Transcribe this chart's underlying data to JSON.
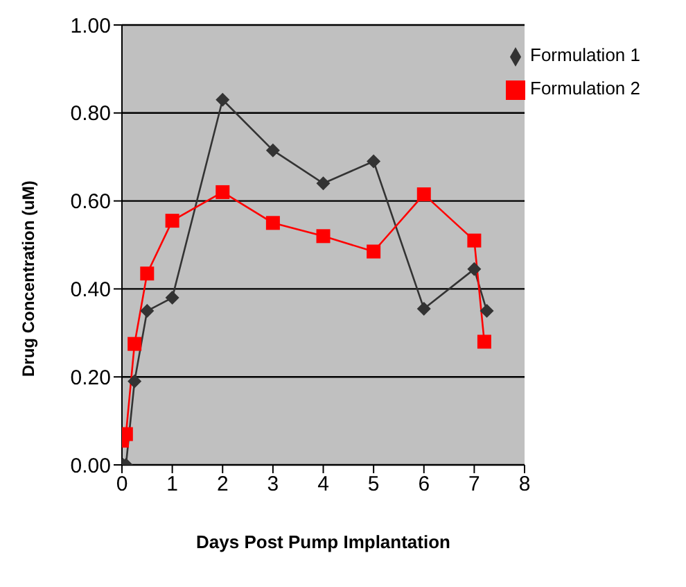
{
  "chart_data": {
    "type": "line",
    "xlabel": "Days Post Pump Implantation",
    "ylabel": "Drug Concentration (uM)",
    "series": [
      {
        "name": "Formulation 1",
        "color": "#333333",
        "marker": "diamond",
        "x": [
          0.02,
          0.08,
          0.25,
          0.5,
          1,
          2,
          3,
          4,
          5,
          6,
          7,
          7.25
        ],
        "values": [
          0,
          0,
          0.19,
          0.35,
          0.38,
          0.83,
          0.715,
          0.64,
          0.69,
          0.355,
          0.445,
          0.35
        ]
      },
      {
        "name": "Formulation 2",
        "color": "#ff0000",
        "marker": "square",
        "x": [
          0,
          0.08,
          0.25,
          0.5,
          1,
          2,
          3,
          4,
          5,
          6,
          7,
          7.2
        ],
        "values": [
          0.055,
          0.07,
          0.275,
          0.435,
          0.555,
          0.62,
          0.55,
          0.52,
          0.485,
          0.615,
          0.51,
          0.28
        ]
      }
    ],
    "xlim": [
      0,
      8
    ],
    "xticks": [
      0,
      1,
      2,
      3,
      4,
      5,
      6,
      7,
      8
    ],
    "ylim": [
      0,
      1
    ],
    "yticks": [
      {
        "value": 0,
        "label": "0.00"
      },
      {
        "value": 0.2,
        "label": "0.20"
      },
      {
        "value": 0.4,
        "label": "0.40"
      },
      {
        "value": 0.6,
        "label": "0.60"
      },
      {
        "value": 0.8,
        "label": "0.80"
      },
      {
        "value": 1,
        "label": "1.00"
      }
    ],
    "grid": "y",
    "legend": "top right",
    "line_style": "solid"
  }
}
